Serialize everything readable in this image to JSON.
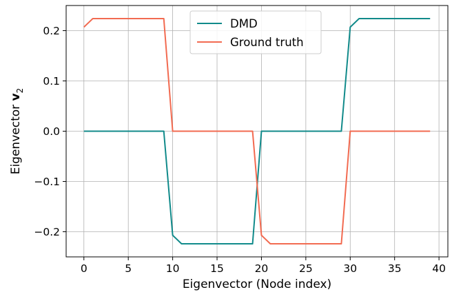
{
  "chart_data": {
    "type": "line",
    "title": "",
    "xlabel": "Eigenvector (Node index)",
    "ylabel_main": "Eigenvector ",
    "ylabel_symbol": "v",
    "ylabel_subscript": "2",
    "xlim": [
      -2,
      41
    ],
    "ylim": [
      -0.25,
      0.25
    ],
    "xticks": [
      0,
      5,
      10,
      15,
      20,
      25,
      30,
      35,
      40
    ],
    "xtick_labels": [
      "0",
      "5",
      "10",
      "15",
      "20",
      "25",
      "30",
      "35",
      "40"
    ],
    "yticks": [
      -0.2,
      -0.1,
      0.0,
      0.1,
      0.2
    ],
    "ytick_labels": [
      "−0.2",
      "−0.1",
      "0.0",
      "0.1",
      "0.2"
    ],
    "grid": true,
    "legend_position": "top-center",
    "x": [
      0,
      1,
      2,
      3,
      4,
      5,
      6,
      7,
      8,
      9,
      10,
      11,
      12,
      13,
      14,
      15,
      16,
      17,
      18,
      19,
      20,
      21,
      22,
      23,
      24,
      25,
      26,
      27,
      28,
      29,
      30,
      31,
      32,
      33,
      34,
      35,
      36,
      37,
      38,
      39
    ],
    "series": [
      {
        "name": "DMD",
        "color": "#108a8a",
        "values": [
          0,
          0,
          0,
          0,
          0,
          0,
          0,
          0,
          0,
          0,
          -0.207,
          -0.224,
          -0.224,
          -0.224,
          -0.224,
          -0.224,
          -0.224,
          -0.224,
          -0.224,
          -0.224,
          0,
          0,
          0,
          0,
          0,
          0,
          0,
          0,
          0,
          0,
          0.207,
          0.224,
          0.224,
          0.224,
          0.224,
          0.224,
          0.224,
          0.224,
          0.224,
          0.224
        ]
      },
      {
        "name": "Ground truth",
        "color": "#f26a50",
        "values": [
          0.207,
          0.224,
          0.224,
          0.224,
          0.224,
          0.224,
          0.224,
          0.224,
          0.224,
          0.224,
          0,
          0,
          0,
          0,
          0,
          0,
          0,
          0,
          0,
          0,
          -0.207,
          -0.224,
          -0.224,
          -0.224,
          -0.224,
          -0.224,
          -0.224,
          -0.224,
          -0.224,
          -0.224,
          0,
          0,
          0,
          0,
          0,
          0,
          0,
          0,
          0,
          0
        ]
      }
    ]
  }
}
